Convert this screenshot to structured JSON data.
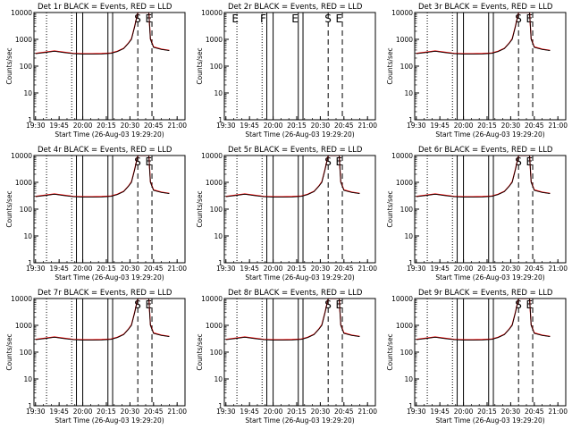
{
  "colors": {
    "background": "#ffffff",
    "events": "#000000",
    "lld": "#ff0000",
    "axis": "#000000"
  },
  "chart_data": [
    {
      "type": "line",
      "title": "Det 1r BLACK = Events, RED = LLD",
      "xlabel": "Start Time (26-Aug-03 19:29:20)",
      "ylabel": "Counts/sec",
      "x_ticks": [
        "19:30",
        "19:45",
        "20:00",
        "20:15",
        "20:30",
        "20:45",
        "21:00"
      ],
      "y_ticks": [
        "1",
        "10",
        "100",
        "1000",
        "10000"
      ],
      "ylim": [
        1,
        10000
      ],
      "yscale": "log",
      "markers": {
        "S": "20:35",
        "E": "20:42"
      },
      "events_present": true
    },
    {
      "type": "line",
      "title": "Det 2r BLACK = Events, RED = LLD",
      "xlabel": "Start Time (26-Aug-03 19:29:20)",
      "ylabel": "Counts/sec",
      "x_ticks": [
        "19:30",
        "19:45",
        "20:00",
        "20:15",
        "20:30",
        "20:45",
        "21:00"
      ],
      "y_ticks": [
        "1",
        "10",
        "100",
        "1000",
        "10000"
      ],
      "ylim": [
        1,
        10000
      ],
      "yscale": "log",
      "markers": {
        "E": "19:36",
        "F": "19:54",
        "E2": "20:14",
        "S": "20:35",
        "E3": "20:42"
      },
      "events_present": false
    },
    {
      "type": "line",
      "title": "Det 3r BLACK = Events, RED = LLD",
      "xlabel": "Start Time (26-Aug-03 19:29:20)",
      "ylabel": "Counts/sec",
      "x_ticks": [
        "19:30",
        "19:45",
        "20:00",
        "20:15",
        "20:30",
        "20:45",
        "21:00"
      ],
      "y_ticks": [
        "1",
        "10",
        "100",
        "1000",
        "10000"
      ],
      "ylim": [
        1,
        10000
      ],
      "yscale": "log",
      "markers": {
        "S": "20:35",
        "E": "20:42"
      },
      "events_present": true
    },
    {
      "type": "line",
      "title": "Det 4r BLACK = Events, RED = LLD",
      "xlabel": "Start Time (26-Aug-03 19:29:20)",
      "ylabel": "Counts/sec",
      "x_ticks": [
        "19:30",
        "19:45",
        "20:00",
        "20:15",
        "20:30",
        "20:45",
        "21:00"
      ],
      "y_ticks": [
        "1",
        "10",
        "100",
        "1000",
        "10000"
      ],
      "ylim": [
        1,
        10000
      ],
      "yscale": "log",
      "markers": {
        "S": "20:35",
        "E": "20:42"
      },
      "events_present": true
    },
    {
      "type": "line",
      "title": "Det 5r BLACK = Events, RED = LLD",
      "xlabel": "Start Time (26-Aug-03 19:29:20)",
      "ylabel": "Counts/sec",
      "x_ticks": [
        "19:30",
        "19:45",
        "20:00",
        "20:15",
        "20:30",
        "20:45",
        "21:00"
      ],
      "y_ticks": [
        "1",
        "10",
        "100",
        "1000",
        "10000"
      ],
      "ylim": [
        1,
        10000
      ],
      "yscale": "log",
      "markers": {
        "S": "20:35",
        "E": "20:42"
      },
      "events_present": true
    },
    {
      "type": "line",
      "title": "Det 6r BLACK = Events, RED = LLD",
      "xlabel": "Start Time (26-Aug-03 19:29:20)",
      "ylabel": "Counts/sec",
      "x_ticks": [
        "19:30",
        "19:45",
        "20:00",
        "20:15",
        "20:30",
        "20:45",
        "21:00"
      ],
      "y_ticks": [
        "1",
        "10",
        "100",
        "1000",
        "10000"
      ],
      "ylim": [
        1,
        10000
      ],
      "yscale": "log",
      "markers": {
        "S": "20:35",
        "E": "20:42"
      },
      "events_present": true
    },
    {
      "type": "line",
      "title": "Det 7r BLACK = Events, RED = LLD",
      "xlabel": "Start Time (26-Aug-03 19:29:20)",
      "ylabel": "Counts/sec",
      "x_ticks": [
        "19:30",
        "19:45",
        "20:00",
        "20:15",
        "20:30",
        "20:45",
        "21:00"
      ],
      "y_ticks": [
        "1",
        "10",
        "100",
        "1000",
        "10000"
      ],
      "ylim": [
        1,
        10000
      ],
      "yscale": "log",
      "markers": {
        "S": "20:35",
        "E": "20:42"
      },
      "events_present": true
    },
    {
      "type": "line",
      "title": "Det 8r BLACK = Events, RED = LLD",
      "xlabel": "Start Time (26-Aug-03 19:29:20)",
      "ylabel": "Counts/sec",
      "x_ticks": [
        "19:30",
        "19:45",
        "20:00",
        "20:15",
        "20:30",
        "20:45",
        "21:00"
      ],
      "y_ticks": [
        "1",
        "10",
        "100",
        "1000",
        "10000"
      ],
      "ylim": [
        1,
        10000
      ],
      "yscale": "log",
      "markers": {
        "S": "20:35",
        "E": "20:42"
      },
      "events_present": true
    },
    {
      "type": "line",
      "title": "Det 9r BLACK = Events, RED = LLD",
      "xlabel": "Start Time (26-Aug-03 19:29:20)",
      "ylabel": "Counts/sec",
      "x_ticks": [
        "19:30",
        "19:45",
        "20:00",
        "20:15",
        "20:30",
        "20:45",
        "21:00"
      ],
      "y_ticks": [
        "1",
        "10",
        "100",
        "1000",
        "10000"
      ],
      "ylim": [
        1,
        10000
      ],
      "yscale": "log",
      "markers": {
        "S": "20:35",
        "E": "20:42"
      },
      "events_present": true
    }
  ],
  "series_shape": {
    "x": [
      "19:30",
      "19:36",
      "19:42",
      "19:48",
      "19:54",
      "20:00",
      "20:06",
      "20:12",
      "20:18",
      "20:22",
      "20:26",
      "20:29",
      "20:31",
      "20:33",
      "20:35",
      "20:42",
      "20:43",
      "20:45",
      "20:50",
      "20:55"
    ],
    "events": [
      290,
      320,
      360,
      320,
      290,
      280,
      280,
      285,
      300,
      350,
      450,
      700,
      1000,
      3000,
      10000,
      10000,
      1000,
      500,
      420,
      380
    ],
    "lld": [
      300,
      330,
      370,
      330,
      300,
      290,
      290,
      295,
      310,
      360,
      460,
      720,
      1050,
      3100,
      10000,
      10000,
      1050,
      520,
      430,
      390
    ]
  },
  "vlines": {
    "dotted": [
      "19:37",
      "19:53"
    ],
    "solid": [
      "19:56",
      "20:00",
      "20:16",
      "20:19"
    ],
    "dashed": [
      "20:35",
      "20:44"
    ]
  }
}
